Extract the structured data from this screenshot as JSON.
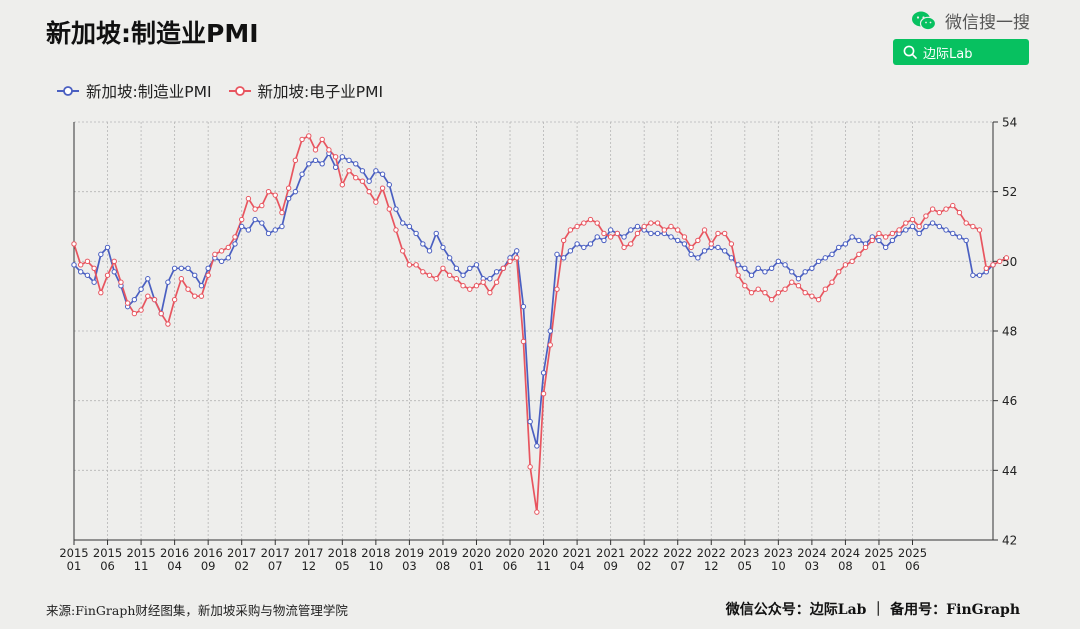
{
  "header": {
    "title": "新加坡:制造业PMI",
    "wechat_label": "微信搜一搜",
    "search_label": "边际Lab"
  },
  "footer": {
    "source": "来源:FinGraph财经图集，新加坡采购与物流管理学院",
    "credit": "微信公众号：边际Lab ｜ 备用号：FinGraph"
  },
  "colors": {
    "manufacturing": "#4a5fc1",
    "electronics": "#e8555f",
    "grid": "#b5b5b5",
    "brand_green": "#07c160"
  },
  "chart_data": {
    "type": "line",
    "title": "新加坡:制造业PMI",
    "x_start": "2015-01",
    "x_end": "2025-06",
    "x_tick_labels": [
      [
        "2015",
        "01"
      ],
      [
        "2015",
        "06"
      ],
      [
        "2015",
        "11"
      ],
      [
        "2016",
        "04"
      ],
      [
        "2016",
        "09"
      ],
      [
        "2017",
        "02"
      ],
      [
        "2017",
        "07"
      ],
      [
        "2017",
        "12"
      ],
      [
        "2018",
        "05"
      ],
      [
        "2018",
        "10"
      ],
      [
        "2019",
        "03"
      ],
      [
        "2019",
        "08"
      ],
      [
        "2020",
        "01"
      ],
      [
        "2020",
        "06"
      ],
      [
        "2020",
        "11"
      ],
      [
        "2021",
        "04"
      ],
      [
        "2021",
        "09"
      ],
      [
        "2022",
        "02"
      ],
      [
        "2022",
        "07"
      ],
      [
        "2022",
        "12"
      ],
      [
        "2023",
        "05"
      ],
      [
        "2023",
        "10"
      ],
      [
        "2024",
        "03"
      ],
      [
        "2024",
        "08"
      ],
      [
        "2025",
        "01"
      ],
      [
        "2025",
        "06"
      ]
    ],
    "ylim": [
      42,
      54
    ],
    "y_ticks": [
      42,
      44,
      46,
      48,
      50,
      52,
      54
    ],
    "y_axis_position": "right",
    "grid": true,
    "legend_position": "top-left",
    "series": [
      {
        "name": "新加坡:制造业PMI",
        "values": [
          49.9,
          49.7,
          49.6,
          49.4,
          50.2,
          50.4,
          49.7,
          49.3,
          48.7,
          48.9,
          49.2,
          49.5,
          48.9,
          48.5,
          49.4,
          49.8,
          49.8,
          49.8,
          49.6,
          49.3,
          49.8,
          50.1,
          50.0,
          50.1,
          50.5,
          51.0,
          50.9,
          51.2,
          51.1,
          50.8,
          50.9,
          51.0,
          51.8,
          52.0,
          52.5,
          52.8,
          52.9,
          52.8,
          53.1,
          52.7,
          53.0,
          52.9,
          52.8,
          52.6,
          52.3,
          52.6,
          52.5,
          52.2,
          51.5,
          51.1,
          51.0,
          50.8,
          50.5,
          50.3,
          50.8,
          50.4,
          50.1,
          49.8,
          49.6,
          49.8,
          49.9,
          49.5,
          49.5,
          49.7,
          49.8,
          50.1,
          50.3,
          48.7,
          45.4,
          44.7,
          46.8,
          48.0,
          50.2,
          50.1,
          50.3,
          50.5,
          50.4,
          50.5,
          50.7,
          50.6,
          50.9,
          50.8,
          50.7,
          50.9,
          51.0,
          50.9,
          50.8,
          50.8,
          50.8,
          50.7,
          50.6,
          50.5,
          50.2,
          50.1,
          50.3,
          50.4,
          50.4,
          50.3,
          50.1,
          49.9,
          49.8,
          49.6,
          49.8,
          49.7,
          49.8,
          50.0,
          49.9,
          49.7,
          49.5,
          49.7,
          49.8,
          50.0,
          50.1,
          50.2,
          50.4,
          50.5,
          50.7,
          50.6,
          50.5,
          50.7,
          50.6,
          50.4,
          50.6,
          50.8,
          50.9,
          51.0,
          50.8,
          51.0,
          51.1,
          51.0,
          50.9,
          50.8,
          50.7,
          50.6,
          49.6,
          49.6,
          49.7,
          49.9
        ]
      },
      {
        "name": "新加坡:电子业PMI",
        "values": [
          50.5,
          49.9,
          50.0,
          49.8,
          49.1,
          49.6,
          50.0,
          49.4,
          48.8,
          48.5,
          48.6,
          49.0,
          48.9,
          48.5,
          48.2,
          48.9,
          49.5,
          49.2,
          49.0,
          49.0,
          49.6,
          50.2,
          50.3,
          50.4,
          50.7,
          51.2,
          51.8,
          51.5,
          51.6,
          52.0,
          51.9,
          51.4,
          52.1,
          52.9,
          53.5,
          53.6,
          53.2,
          53.5,
          53.2,
          53.0,
          52.2,
          52.6,
          52.4,
          52.3,
          52.0,
          51.7,
          52.1,
          51.5,
          50.9,
          50.3,
          49.9,
          49.9,
          49.7,
          49.6,
          49.5,
          49.8,
          49.6,
          49.5,
          49.3,
          49.2,
          49.3,
          49.4,
          49.1,
          49.4,
          49.8,
          50.0,
          50.1,
          47.7,
          44.1,
          42.8,
          46.2,
          47.6,
          49.2,
          50.6,
          50.9,
          51.0,
          51.1,
          51.2,
          51.1,
          50.8,
          50.7,
          50.8,
          50.4,
          50.5,
          50.8,
          51.0,
          51.1,
          51.1,
          50.9,
          51.0,
          50.9,
          50.7,
          50.4,
          50.6,
          50.9,
          50.5,
          50.8,
          50.8,
          50.5,
          49.6,
          49.3,
          49.1,
          49.2,
          49.1,
          48.9,
          49.1,
          49.2,
          49.4,
          49.3,
          49.1,
          49.0,
          48.9,
          49.2,
          49.4,
          49.7,
          49.9,
          50.0,
          50.2,
          50.4,
          50.6,
          50.8,
          50.7,
          50.8,
          50.9,
          51.1,
          51.2,
          51.0,
          51.3,
          51.5,
          51.4,
          51.5,
          51.6,
          51.4,
          51.1,
          51.0,
          50.9,
          49.8,
          49.9,
          50.0,
          50.1
        ]
      }
    ]
  }
}
